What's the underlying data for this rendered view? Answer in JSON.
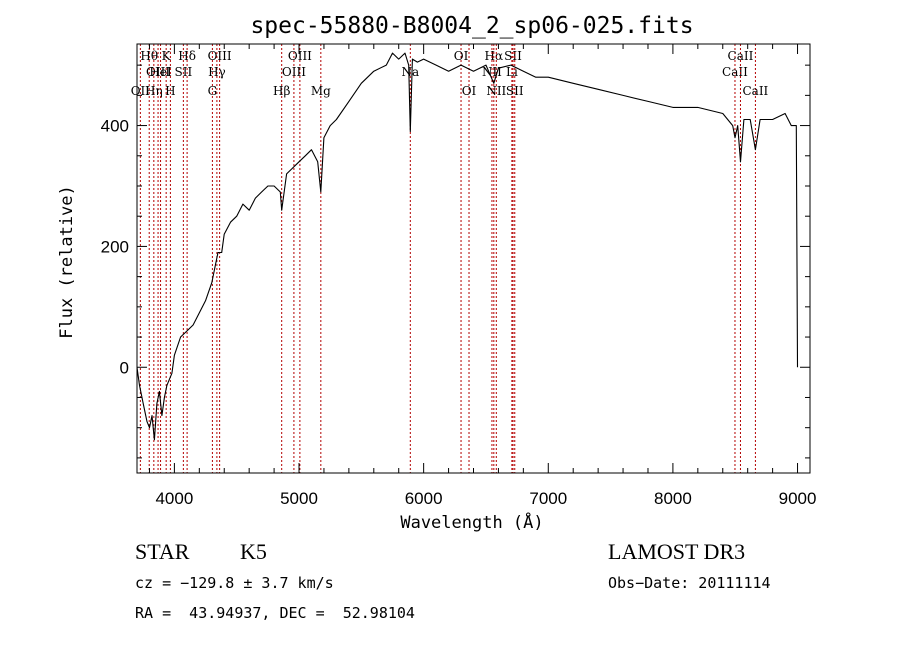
{
  "chart_data": {
    "type": "line",
    "title": "spec-55880-B8004_2_sp06-025.fits",
    "xlabel": "Wavelength (Å)",
    "ylabel": "Flux (relative)",
    "xlim": [
      3700,
      9100
    ],
    "ylim": [
      -175,
      535
    ],
    "xticks": [
      4000,
      5000,
      6000,
      7000,
      8000,
      9000
    ],
    "yticks": [
      0,
      200,
      400
    ],
    "series": [
      {
        "name": "flux",
        "x": [
          3700,
          3720,
          3750,
          3780,
          3800,
          3820,
          3840,
          3860,
          3880,
          3900,
          3920,
          3940,
          3960,
          3980,
          4000,
          4050,
          4100,
          4150,
          4200,
          4250,
          4300,
          4330,
          4350,
          4380,
          4400,
          4450,
          4500,
          4550,
          4600,
          4650,
          4700,
          4750,
          4800,
          4850,
          4861,
          4900,
          4950,
          5000,
          5050,
          5100,
          5150,
          5175,
          5200,
          5250,
          5300,
          5400,
          5500,
          5600,
          5700,
          5750,
          5800,
          5850,
          5880,
          5893,
          5910,
          5950,
          6000,
          6100,
          6200,
          6300,
          6400,
          6500,
          6563,
          6600,
          6700,
          6800,
          6900,
          7000,
          7200,
          7400,
          7600,
          7800,
          8000,
          8200,
          8400,
          8480,
          8498,
          8520,
          8542,
          8570,
          8620,
          8662,
          8700,
          8800,
          8900,
          8950,
          8990,
          9000
        ],
        "y": [
          0,
          -30,
          -60,
          -90,
          -100,
          -80,
          -120,
          -60,
          -40,
          -80,
          -50,
          -30,
          -20,
          -10,
          20,
          50,
          60,
          70,
          90,
          110,
          140,
          170,
          190,
          190,
          220,
          240,
          250,
          270,
          260,
          280,
          290,
          300,
          300,
          290,
          260,
          320,
          330,
          340,
          350,
          360,
          340,
          290,
          380,
          400,
          410,
          440,
          470,
          490,
          500,
          520,
          510,
          520,
          500,
          390,
          510,
          505,
          510,
          500,
          490,
          500,
          490,
          500,
          470,
          495,
          500,
          490,
          480,
          480,
          470,
          460,
          450,
          440,
          430,
          430,
          420,
          400,
          380,
          400,
          340,
          410,
          410,
          360,
          410,
          410,
          420,
          400,
          400,
          0
        ]
      }
    ],
    "lines": [
      {
        "name": "OII",
        "x": 3727,
        "row": 3
      },
      {
        "name": "Hθ",
        "x": 3798,
        "row": 1
      },
      {
        "name": "OIII",
        "x": 3869,
        "row": 2
      },
      {
        "name": "Hη",
        "x": 3835,
        "row": 3
      },
      {
        "name": "K",
        "x": 3934,
        "row": 1
      },
      {
        "name": "HeI",
        "x": 3889,
        "row": 2
      },
      {
        "name": "H",
        "x": 3968,
        "row": 3
      },
      {
        "name": "SII",
        "x": 4072,
        "row": 2
      },
      {
        "name": "Hδ",
        "x": 4102,
        "row": 1
      },
      {
        "name": "OIII",
        "x": 4363,
        "row": 1
      },
      {
        "name": "Hγ",
        "x": 4341,
        "row": 2
      },
      {
        "name": "G",
        "x": 4305,
        "row": 3
      },
      {
        "name": "Hβ",
        "x": 4861,
        "row": 3
      },
      {
        "name": "OIII",
        "x": 5007,
        "row": 1
      },
      {
        "name": "OIII",
        "x": 4959,
        "row": 2
      },
      {
        "name": "Mg",
        "x": 5175,
        "row": 3
      },
      {
        "name": "Na",
        "x": 5893,
        "row": 2
      },
      {
        "name": "OI",
        "x": 6300,
        "row": 1
      },
      {
        "name": "OI",
        "x": 6364,
        "row": 3
      },
      {
        "name": "Hα",
        "x": 6563,
        "row": 1
      },
      {
        "name": "NII",
        "x": 6548,
        "row": 2
      },
      {
        "name": "NII",
        "x": 6583,
        "row": 3
      },
      {
        "name": "SII",
        "x": 6717,
        "row": 1
      },
      {
        "name": "Li",
        "x": 6708,
        "row": 2
      },
      {
        "name": "SII",
        "x": 6731,
        "row": 3
      },
      {
        "name": "CaII",
        "x": 8498,
        "row": 2
      },
      {
        "name": "CaII",
        "x": 8542,
        "row": 1
      },
      {
        "name": "CaII",
        "x": 8662,
        "row": 3
      }
    ],
    "line_color": "#b40000",
    "grid": false,
    "legend": "none"
  },
  "info": {
    "class_label": "STAR",
    "subclass": "K5",
    "survey": "LAMOST DR3",
    "cz": "cz = −129.8 ± 3.7 km/s",
    "obs_date": "Obs−Date: 20111114",
    "coords": "RA =  43.94937, DEC =  52.98104"
  }
}
